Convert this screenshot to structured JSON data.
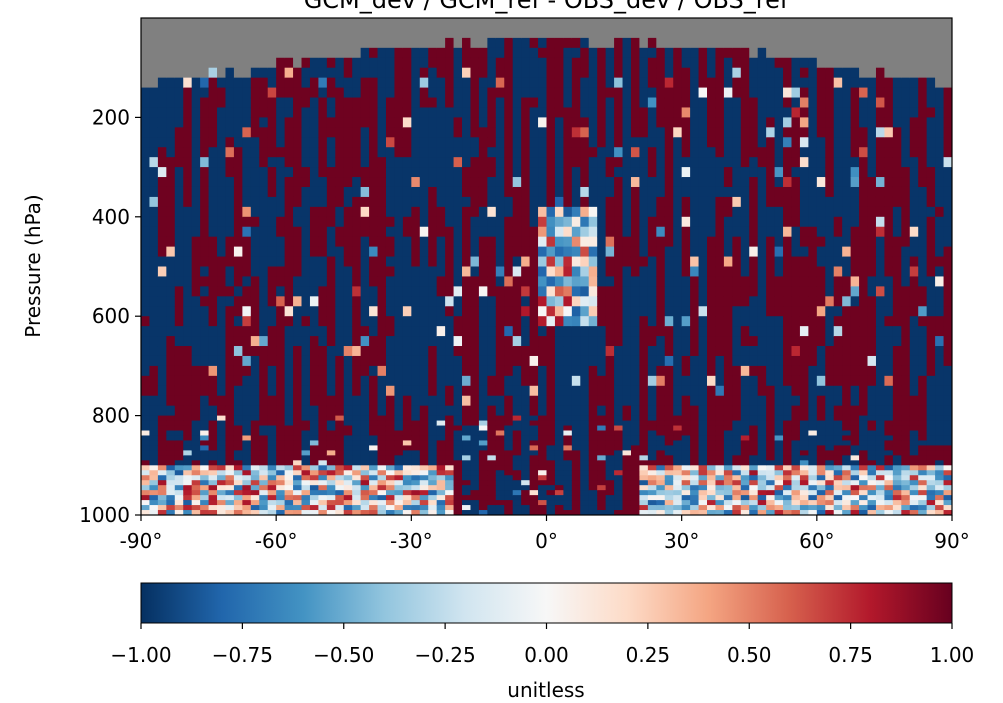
{
  "chart_data": {
    "type": "heatmap",
    "title": "GCM_dev / GCM_ref - OBS_dev / OBS_ref",
    "ylabel": "Pressure (hPa)",
    "xlabel": "",
    "xlim": [
      -90,
      90
    ],
    "ylim": [
      1000,
      0
    ],
    "x_ticks": [
      -90,
      -60,
      -30,
      0,
      30,
      60,
      90
    ],
    "x_tick_labels": [
      "-90°",
      "-60°",
      "-30°",
      "0°",
      "30°",
      "60°",
      "90°"
    ],
    "y_ticks": [
      200,
      400,
      600,
      800,
      1000
    ],
    "y_tick_labels": [
      "200",
      "400",
      "600",
      "800",
      "1000"
    ],
    "colormap": "RdBu_r",
    "missing_color": "#808080",
    "colorbar": {
      "vmin": -1.0,
      "vmax": 1.0,
      "orientation": "horizontal",
      "label": "unitless",
      "ticks": [
        -1.0,
        -0.75,
        -0.5,
        -0.25,
        0.0,
        0.25,
        0.5,
        0.75,
        1.0
      ],
      "tick_labels": [
        "−1.00",
        "−0.75",
        "−0.50",
        "−0.25",
        "0.00",
        "0.25",
        "0.50",
        "0.75",
        "1.00"
      ]
    },
    "grid": false
  }
}
